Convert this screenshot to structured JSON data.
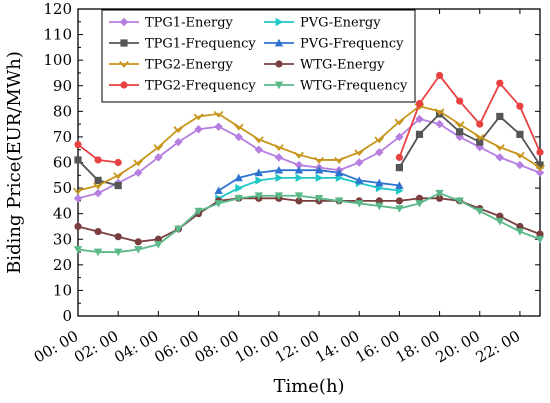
{
  "chart_data": {
    "type": "line",
    "xlabel": "Time(h)",
    "ylabel": "Biding Price(EUR/MWh)",
    "ylim": [
      0,
      120
    ],
    "xlim": [
      0,
      23
    ],
    "yticks": [
      0,
      10,
      20,
      30,
      40,
      50,
      60,
      70,
      80,
      90,
      100,
      110,
      120
    ],
    "xticks": [
      0,
      2,
      4,
      6,
      8,
      10,
      12,
      14,
      16,
      18,
      20,
      22
    ],
    "xtick_labels": [
      "00: 00",
      "02: 00",
      "04: 00",
      "06: 00",
      "08: 00",
      "10: 00",
      "12: 00",
      "14: 00",
      "16: 00",
      "18: 00",
      "20: 00",
      "22: 00"
    ],
    "grid": false,
    "legend_position": "top",
    "series": [
      {
        "name": "TPG1-Energy",
        "color": "#b57ee0",
        "marker": "diamond",
        "x": [
          0,
          1,
          2,
          3,
          4,
          5,
          6,
          7,
          8,
          9,
          10,
          11,
          12,
          13,
          14,
          15,
          16,
          17,
          18,
          19,
          20,
          21,
          22,
          23
        ],
        "y": [
          46,
          48,
          52,
          56,
          62,
          68,
          73,
          74,
          70,
          65,
          62,
          59,
          58,
          57,
          60,
          64,
          70,
          77,
          75,
          70,
          66,
          62,
          59,
          56
        ]
      },
      {
        "name": "PVG-Energy",
        "color": "#1fc7c7",
        "marker": "triangle-right",
        "x": [
          7,
          8,
          9,
          10,
          11,
          12,
          13,
          14,
          15,
          16
        ],
        "y": [
          46,
          50,
          53,
          54,
          54,
          54,
          54,
          52,
          50,
          49
        ]
      },
      {
        "name": "TPG1-Frequency",
        "color": "#555555",
        "marker": "square",
        "x": [
          0,
          1,
          2,
          16,
          17,
          18,
          19,
          20,
          21,
          22,
          23
        ],
        "y": [
          61,
          53,
          51,
          58,
          71,
          79,
          72,
          68,
          78,
          71,
          59
        ]
      },
      {
        "name": "PVG-Frequency",
        "color": "#2f73d0",
        "marker": "triangle-up",
        "x": [
          7,
          8,
          9,
          10,
          11,
          12,
          13,
          14,
          15,
          16
        ],
        "y": [
          49,
          54,
          56,
          57,
          57,
          57,
          56,
          53,
          52,
          51
        ]
      },
      {
        "name": "TPG2-Energy",
        "color": "#c8961c",
        "marker": "chevron-down",
        "x": [
          0,
          1,
          2,
          3,
          4,
          5,
          6,
          7,
          8,
          9,
          10,
          11,
          12,
          13,
          14,
          15,
          16,
          17,
          18,
          19,
          20,
          21,
          22,
          23
        ],
        "y": [
          49,
          51,
          55,
          60,
          66,
          73,
          78,
          79,
          74,
          69,
          66,
          63,
          61,
          61,
          64,
          69,
          76,
          82,
          80,
          75,
          70,
          66,
          63,
          58
        ]
      },
      {
        "name": "WTG-Energy",
        "color": "#7a3e3e",
        "marker": "circle",
        "x": [
          0,
          1,
          2,
          3,
          4,
          5,
          6,
          7,
          8,
          9,
          10,
          11,
          12,
          13,
          14,
          15,
          16,
          17,
          18,
          19,
          20,
          21,
          22,
          23
        ],
        "y": [
          35,
          33,
          31,
          29,
          30,
          34,
          40,
          45,
          46,
          46,
          46,
          45,
          45,
          45,
          45,
          45,
          45,
          46,
          46,
          45,
          42,
          39,
          35,
          32
        ]
      },
      {
        "name": "TPG2-Frequency",
        "color": "#e84141",
        "marker": "circle",
        "x": [
          0,
          1,
          2,
          16,
          17,
          18,
          19,
          20,
          21,
          22,
          23
        ],
        "y": [
          67,
          61,
          60,
          62,
          83,
          94,
          84,
          75,
          91,
          82,
          64
        ]
      },
      {
        "name": "WTG-Frequency",
        "color": "#5ab889",
        "marker": "triangle-down",
        "x": [
          0,
          1,
          2,
          3,
          4,
          5,
          6,
          7,
          8,
          9,
          10,
          11,
          12,
          13,
          14,
          15,
          16,
          17,
          18,
          19,
          20,
          21,
          22,
          23
        ],
        "y": [
          26,
          25,
          25,
          26,
          28,
          34,
          41,
          44,
          46,
          47,
          47,
          47,
          46,
          45,
          44,
          43,
          42,
          44,
          48,
          45,
          41,
          37,
          33,
          30
        ]
      }
    ],
    "segments": {
      "TPG1-Frequency": [
        [
          0,
          2
        ],
        [
          16,
          23
        ]
      ],
      "TPG2-Frequency": [
        [
          0,
          2
        ],
        [
          16,
          23
        ]
      ]
    }
  }
}
